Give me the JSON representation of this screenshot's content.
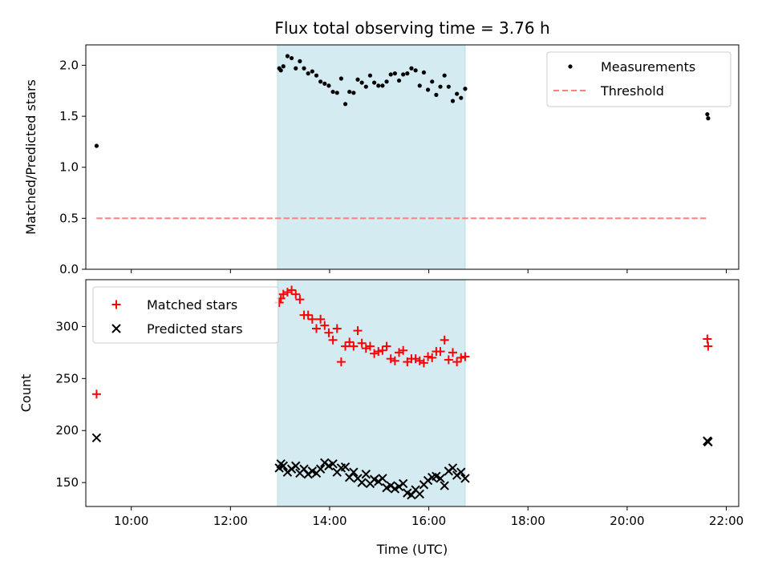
{
  "chart_data": [
    {
      "type": "scatter",
      "title": "Flux total observing time = 3.76 h",
      "xlabel": "",
      "ylabel": "Matched/Predicted stars",
      "xlim": [
        "09:05",
        "22:15"
      ],
      "ylim": [
        0,
        2.2
      ],
      "yticks": [
        "0.0",
        "0.5",
        "1.0",
        "1.5",
        "2.0"
      ],
      "shaded_interval": [
        "12:57",
        "16:44"
      ],
      "shade_color": "#d4ebf2",
      "legend_position": "top-right",
      "series": [
        {
          "name": "Measurements",
          "marker": "dot",
          "color": "#000000",
          "x": [
            "09:18",
            "12:59",
            "13:01",
            "13:04",
            "13:09",
            "13:14",
            "13:19",
            "13:24",
            "13:29",
            "13:34",
            "13:39",
            "13:44",
            "13:49",
            "13:54",
            "13:59",
            "14:04",
            "14:09",
            "14:14",
            "14:19",
            "14:24",
            "14:29",
            "14:34",
            "14:39",
            "14:44",
            "14:49",
            "14:54",
            "14:59",
            "15:04",
            "15:09",
            "15:14",
            "15:19",
            "15:24",
            "15:29",
            "15:34",
            "15:39",
            "15:44",
            "15:49",
            "15:54",
            "15:59",
            "16:04",
            "16:09",
            "16:14",
            "16:19",
            "16:24",
            "16:29",
            "16:34",
            "16:39",
            "16:44",
            "21:37",
            "21:38"
          ],
          "y": [
            1.21,
            1.97,
            1.95,
            1.99,
            2.09,
            2.07,
            1.97,
            2.04,
            1.97,
            1.92,
            1.94,
            1.9,
            1.84,
            1.82,
            1.8,
            1.74,
            1.73,
            1.87,
            1.62,
            1.74,
            1.73,
            1.86,
            1.83,
            1.79,
            1.9,
            1.83,
            1.8,
            1.8,
            1.84,
            1.91,
            1.92,
            1.85,
            1.91,
            1.92,
            1.97,
            1.95,
            1.8,
            1.93,
            1.76,
            1.84,
            1.71,
            1.79,
            1.9,
            1.79,
            1.65,
            1.72,
            1.68,
            1.77,
            1.52,
            1.48
          ]
        },
        {
          "name": "Threshold",
          "marker": "dashed-line",
          "color": "#ff7f7f",
          "x": [
            "09:18",
            "21:38"
          ],
          "y": [
            0.5,
            0.5
          ]
        }
      ]
    },
    {
      "type": "scatter",
      "title": "",
      "xlabel": "Time (UTC)",
      "ylabel": "Count",
      "xlim": [
        "09:05",
        "22:15"
      ],
      "ylim": [
        127,
        345
      ],
      "yticks": [
        "150",
        "200",
        "250",
        "300"
      ],
      "xticks": [
        "10:00",
        "12:00",
        "14:00",
        "16:00",
        "18:00",
        "20:00",
        "22:00"
      ],
      "shaded_interval": [
        "12:57",
        "16:44"
      ],
      "shade_color": "#d4ebf2",
      "legend_position": "top-left",
      "series": [
        {
          "name": "Matched stars",
          "marker": "plus",
          "color": "#ff0000",
          "x": [
            "09:18",
            "12:59",
            "13:01",
            "13:04",
            "13:09",
            "13:14",
            "13:19",
            "13:24",
            "13:29",
            "13:34",
            "13:39",
            "13:44",
            "13:49",
            "13:54",
            "13:59",
            "14:04",
            "14:09",
            "14:14",
            "14:19",
            "14:24",
            "14:29",
            "14:34",
            "14:39",
            "14:44",
            "14:49",
            "14:54",
            "14:59",
            "15:04",
            "15:09",
            "15:14",
            "15:19",
            "15:24",
            "15:29",
            "15:34",
            "15:39",
            "15:44",
            "15:49",
            "15:54",
            "15:59",
            "16:04",
            "16:09",
            "16:14",
            "16:19",
            "16:24",
            "16:29",
            "16:34",
            "16:39",
            "16:44",
            "21:37",
            "21:38"
          ],
          "y": [
            235,
            323,
            327,
            331,
            333,
            335,
            331,
            326,
            311,
            311,
            307,
            298,
            307,
            301,
            294,
            287,
            298,
            266,
            281,
            285,
            281,
            296,
            284,
            279,
            281,
            274,
            276,
            277,
            281,
            269,
            267,
            275,
            277,
            266,
            269,
            269,
            267,
            265,
            271,
            270,
            276,
            276,
            287,
            268,
            275,
            266,
            270,
            271,
            288,
            281
          ]
        },
        {
          "name": "Predicted stars",
          "marker": "x",
          "color": "#000000",
          "x": [
            "09:18",
            "12:59",
            "13:01",
            "13:04",
            "13:09",
            "13:14",
            "13:19",
            "13:24",
            "13:29",
            "13:34",
            "13:39",
            "13:44",
            "13:49",
            "13:54",
            "13:59",
            "14:04",
            "14:09",
            "14:14",
            "14:19",
            "14:24",
            "14:29",
            "14:34",
            "14:39",
            "14:44",
            "14:49",
            "14:54",
            "14:59",
            "15:04",
            "15:09",
            "15:14",
            "15:19",
            "15:24",
            "15:29",
            "15:34",
            "15:39",
            "15:44",
            "15:49",
            "15:54",
            "15:59",
            "16:04",
            "16:09",
            "16:14",
            "16:19",
            "16:24",
            "16:29",
            "16:34",
            "16:39",
            "16:44",
            "21:37",
            "21:38"
          ],
          "y": [
            193,
            164,
            168,
            166,
            160,
            163,
            166,
            159,
            163,
            158,
            161,
            159,
            163,
            169,
            166,
            168,
            160,
            164,
            165,
            155,
            160,
            154,
            150,
            158,
            149,
            153,
            151,
            154,
            145,
            147,
            144,
            146,
            149,
            140,
            138,
            143,
            139,
            148,
            152,
            155,
            156,
            154,
            147,
            161,
            164,
            157,
            160,
            154,
            190,
            189
          ]
        }
      ]
    }
  ]
}
